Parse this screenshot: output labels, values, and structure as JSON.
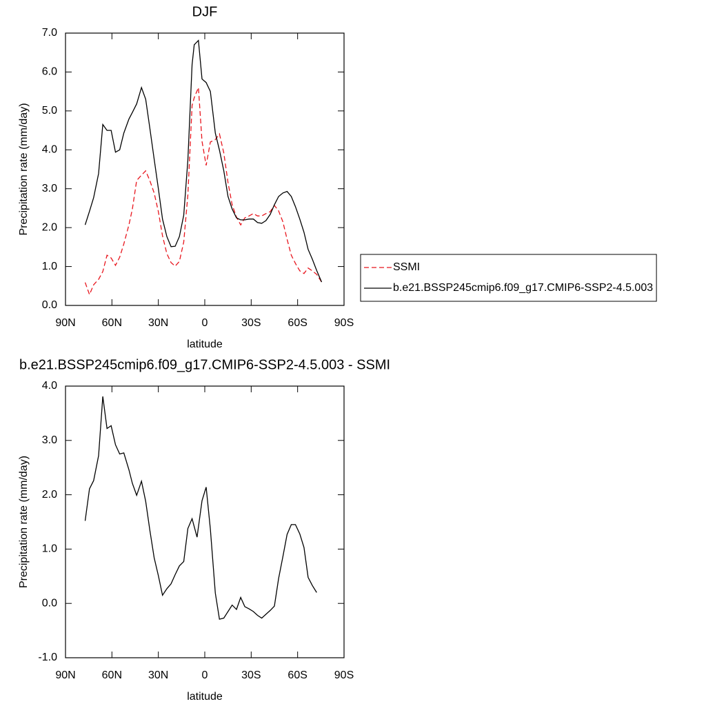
{
  "chart_data": [
    {
      "type": "line",
      "title": "DJF",
      "xlabel": "latitude",
      "ylabel": "Precipitation rate (mm/day)",
      "x": [
        77.3,
        74.5,
        71.8,
        68.6,
        65.9,
        63.2,
        60.5,
        57.7,
        55,
        52.3,
        49,
        46.8,
        44,
        40.9,
        38.2,
        35.5,
        32.7,
        30,
        27.3,
        24.5,
        21.8,
        19.1,
        16.4,
        13.6,
        10.9,
        8.2,
        6.8,
        4.1,
        1.8,
        -0.9,
        -3.6,
        -6.8,
        -9.5,
        -12.3,
        -15,
        -17.7,
        -20.5,
        -23.2,
        -25.9,
        -28.6,
        -31.4,
        -34.1,
        -36.8,
        -39.5,
        -42.3,
        -45,
        -47.7,
        -50.5,
        -53.2,
        -55.9,
        -58.6,
        -61.4,
        -64.1,
        -66.8,
        -69.5,
        -72.3,
        -75.5
      ],
      "series": [
        {
          "name": "SSMI",
          "color": "#e8141c",
          "linestyle": "dashed",
          "values": [
            0.59,
            0.28,
            0.53,
            0.67,
            0.87,
            1.29,
            1.22,
            1.03,
            1.24,
            1.58,
            2.07,
            2.48,
            3.21,
            3.35,
            3.46,
            3.21,
            2.89,
            2.41,
            1.79,
            1.33,
            1.1,
            1.01,
            1.13,
            1.63,
            2.84,
            5.14,
            5.34,
            5.6,
            4.22,
            3.6,
            4.2,
            4.26,
            4.41,
            3.92,
            3.16,
            2.59,
            2.27,
            2.07,
            2.25,
            2.3,
            2.36,
            2.3,
            2.3,
            2.36,
            2.41,
            2.57,
            2.43,
            2.15,
            1.7,
            1.29,
            1.08,
            0.89,
            0.82,
            0.96,
            0.89,
            0.8,
            0.6
          ]
        },
        {
          "name": "b.e21.BSSP245cmip6.f09_g17.CMIP6-SSP2-4.5.003",
          "color": "#000000",
          "linestyle": "solid",
          "values": [
            2.07,
            2.42,
            2.77,
            3.39,
            4.65,
            4.5,
            4.5,
            3.94,
            4.0,
            4.43,
            4.79,
            4.96,
            5.18,
            5.6,
            5.3,
            4.56,
            3.76,
            3.0,
            2.22,
            1.77,
            1.51,
            1.52,
            1.77,
            2.32,
            3.74,
            6.19,
            6.7,
            6.81,
            5.82,
            5.73,
            5.5,
            4.43,
            3.99,
            3.46,
            2.8,
            2.48,
            2.25,
            2.2,
            2.2,
            2.22,
            2.22,
            2.13,
            2.11,
            2.18,
            2.34,
            2.59,
            2.8,
            2.89,
            2.93,
            2.8,
            2.54,
            2.22,
            1.88,
            1.44,
            1.19,
            0.9,
            0.6
          ]
        }
      ],
      "xlim": [
        90,
        -90
      ],
      "xticks": [
        {
          "value": 90,
          "label": "90N"
        },
        {
          "value": 60,
          "label": "60N"
        },
        {
          "value": 30,
          "label": "30N"
        },
        0,
        {
          "value": -30,
          "label": "30S"
        },
        {
          "value": -60,
          "label": "60S"
        },
        {
          "value": -90,
          "label": "90S"
        }
      ],
      "ylim": [
        0,
        7
      ],
      "yticks": [
        {
          "value": 0,
          "label": "0.0"
        },
        {
          "value": 1,
          "label": "1.0"
        },
        {
          "value": 2,
          "label": "2.0"
        },
        {
          "value": 3,
          "label": "3.0"
        },
        {
          "value": 4,
          "label": "4.0"
        },
        {
          "value": 5,
          "label": "5.0"
        },
        {
          "value": 6,
          "label": "6.0"
        },
        {
          "value": 7,
          "label": "7.0"
        }
      ],
      "legend": "right"
    },
    {
      "type": "line",
      "title": "b.e21.BSSP245cmip6.f09_g17.CMIP6-SSP2-4.5.003 - SSMI",
      "xlabel": "latitude",
      "ylabel": "Precipitation rate (mm/day)",
      "x": [
        77.3,
        74.5,
        71.8,
        68.6,
        65.9,
        63.2,
        60.5,
        57.7,
        55,
        52.3,
        49,
        46.8,
        44,
        40.9,
        38.2,
        35.5,
        32.7,
        30,
        27.3,
        24.5,
        21.8,
        19.1,
        16.4,
        13.6,
        10.9,
        8.2,
        5,
        1.8,
        -0.9,
        -3.6,
        -6.8,
        -9.5,
        -12.3,
        -15,
        -17.7,
        -20.5,
        -23.2,
        -25.9,
        -28.6,
        -31.4,
        -34.1,
        -36.8,
        -39.5,
        -42.3,
        -45,
        -47.7,
        -50.5,
        -53.2,
        -55.9,
        -58.6,
        -61.4,
        -64.1,
        -66.8,
        -69.5,
        -72.3
      ],
      "series": [
        {
          "color": "#000000",
          "linestyle": "solid",
          "values": [
            1.52,
            2.11,
            2.26,
            2.72,
            3.81,
            3.22,
            3.27,
            2.92,
            2.75,
            2.77,
            2.46,
            2.21,
            1.99,
            2.25,
            1.88,
            1.35,
            0.84,
            0.51,
            0.15,
            0.27,
            0.36,
            0.53,
            0.69,
            0.77,
            1.38,
            1.56,
            1.22,
            1.89,
            2.14,
            1.37,
            0.19,
            -0.29,
            -0.27,
            -0.15,
            -0.03,
            -0.11,
            0.11,
            -0.06,
            -0.1,
            -0.15,
            -0.22,
            -0.27,
            -0.2,
            -0.13,
            -0.05,
            0.46,
            0.86,
            1.27,
            1.45,
            1.45,
            1.28,
            1.03,
            0.48,
            0.33,
            0.2
          ]
        }
      ],
      "xlim": [
        90,
        -90
      ],
      "xticks": [
        {
          "value": 90,
          "label": "90N"
        },
        {
          "value": 60,
          "label": "60N"
        },
        {
          "value": 30,
          "label": "30N"
        },
        0,
        {
          "value": -30,
          "label": "30S"
        },
        {
          "value": -60,
          "label": "60S"
        },
        {
          "value": -90,
          "label": "90S"
        }
      ],
      "ylim": [
        -1,
        4
      ],
      "yticks": [
        {
          "value": -1,
          "label": "-1.0"
        },
        {
          "value": 0,
          "label": "0.0"
        },
        {
          "value": 1,
          "label": "1.0"
        },
        {
          "value": 2,
          "label": "2.0"
        },
        {
          "value": 3,
          "label": "3.0"
        },
        {
          "value": 4,
          "label": "4.0"
        }
      ]
    }
  ]
}
